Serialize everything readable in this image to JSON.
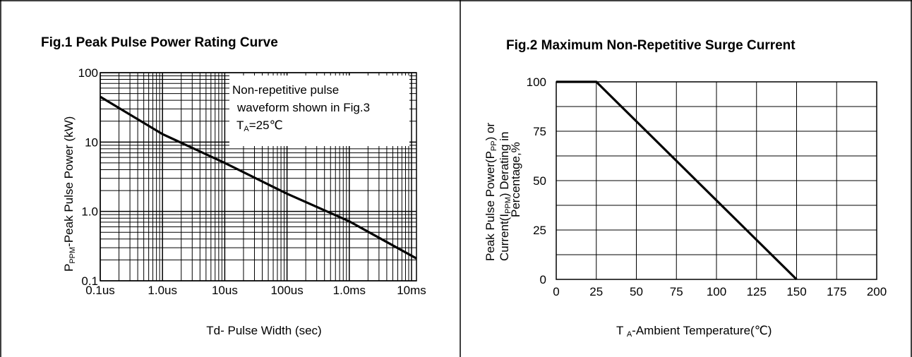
{
  "fig1": {
    "title": "Fig.1 Peak Pulse Power Rating Curve",
    "annotation": {
      "line1": "Non-repetitive pulse",
      "line2": "waveform shown in Fig.3",
      "line3_prefix": "T",
      "line3_sub": "A",
      "line3_suffix": "=25℃"
    },
    "ylabel": {
      "prefix": "P",
      "sub": "PPM",
      "suffix": "-Peak Pulse Power (kW)"
    },
    "xlabel": "Td- Pulse Width (sec)"
  },
  "fig2": {
    "title": "Fig.2 Maximum Non-Repetitive Surge Current",
    "ylabel": {
      "line1_prefix": "Peak Pulse Power(P",
      "line1_sub": "PP",
      "line1_suffix": ") or",
      "line2_prefix": "Current(I",
      "line2_sub": "PPM",
      "line2_suffix": ") Derating in",
      "line3": "Percentage,%"
    },
    "xlabel": {
      "prefix": "T ",
      "sub": "A",
      "suffix": "-Ambient Temperature(℃)"
    }
  },
  "chart_data": [
    {
      "type": "line",
      "title": "Fig.1 Peak Pulse Power Rating Curve",
      "xlabel": "Td- Pulse Width (sec)",
      "ylabel": "PPPM-Peak Pulse Power (kW)",
      "x_scale": "log",
      "y_scale": "log",
      "xlim": [
        1e-07,
        0.012
      ],
      "ylim": [
        0.1,
        100
      ],
      "x_ticks": [
        1e-07,
        1e-06,
        1e-05,
        0.0001,
        0.001,
        0.01
      ],
      "x_tick_labels": [
        "0.1us",
        "1.0us",
        "10us",
        "100us",
        "1.0ms",
        "10ms"
      ],
      "y_ticks": [
        0.1,
        1,
        10,
        100
      ],
      "y_tick_labels": [
        "0.1",
        "1.0",
        "10",
        "100"
      ],
      "grid": true,
      "series": [
        {
          "x": [
            1e-07,
            1e-06,
            1e-05,
            0.0001,
            0.001,
            0.012
          ],
          "y": [
            45,
            13,
            5.0,
            1.8,
            0.72,
            0.21
          ]
        }
      ]
    },
    {
      "type": "line",
      "title": "Fig.2 Maximum Non-Repetitive Surge Current",
      "xlabel": "T A-Ambient Temperature(℃)",
      "ylabel": "Peak Pulse Power(PPP) or Current(IPPM) Derating in Percentage,%",
      "xlim": [
        0,
        200
      ],
      "ylim": [
        0,
        100
      ],
      "x_ticks": [
        0,
        25,
        50,
        75,
        100,
        125,
        150,
        175,
        200
      ],
      "y_ticks": [
        0,
        25,
        50,
        75,
        100
      ],
      "grid": true,
      "series": [
        {
          "x": [
            0,
            25,
            150
          ],
          "y": [
            100,
            100,
            0
          ]
        }
      ]
    }
  ]
}
